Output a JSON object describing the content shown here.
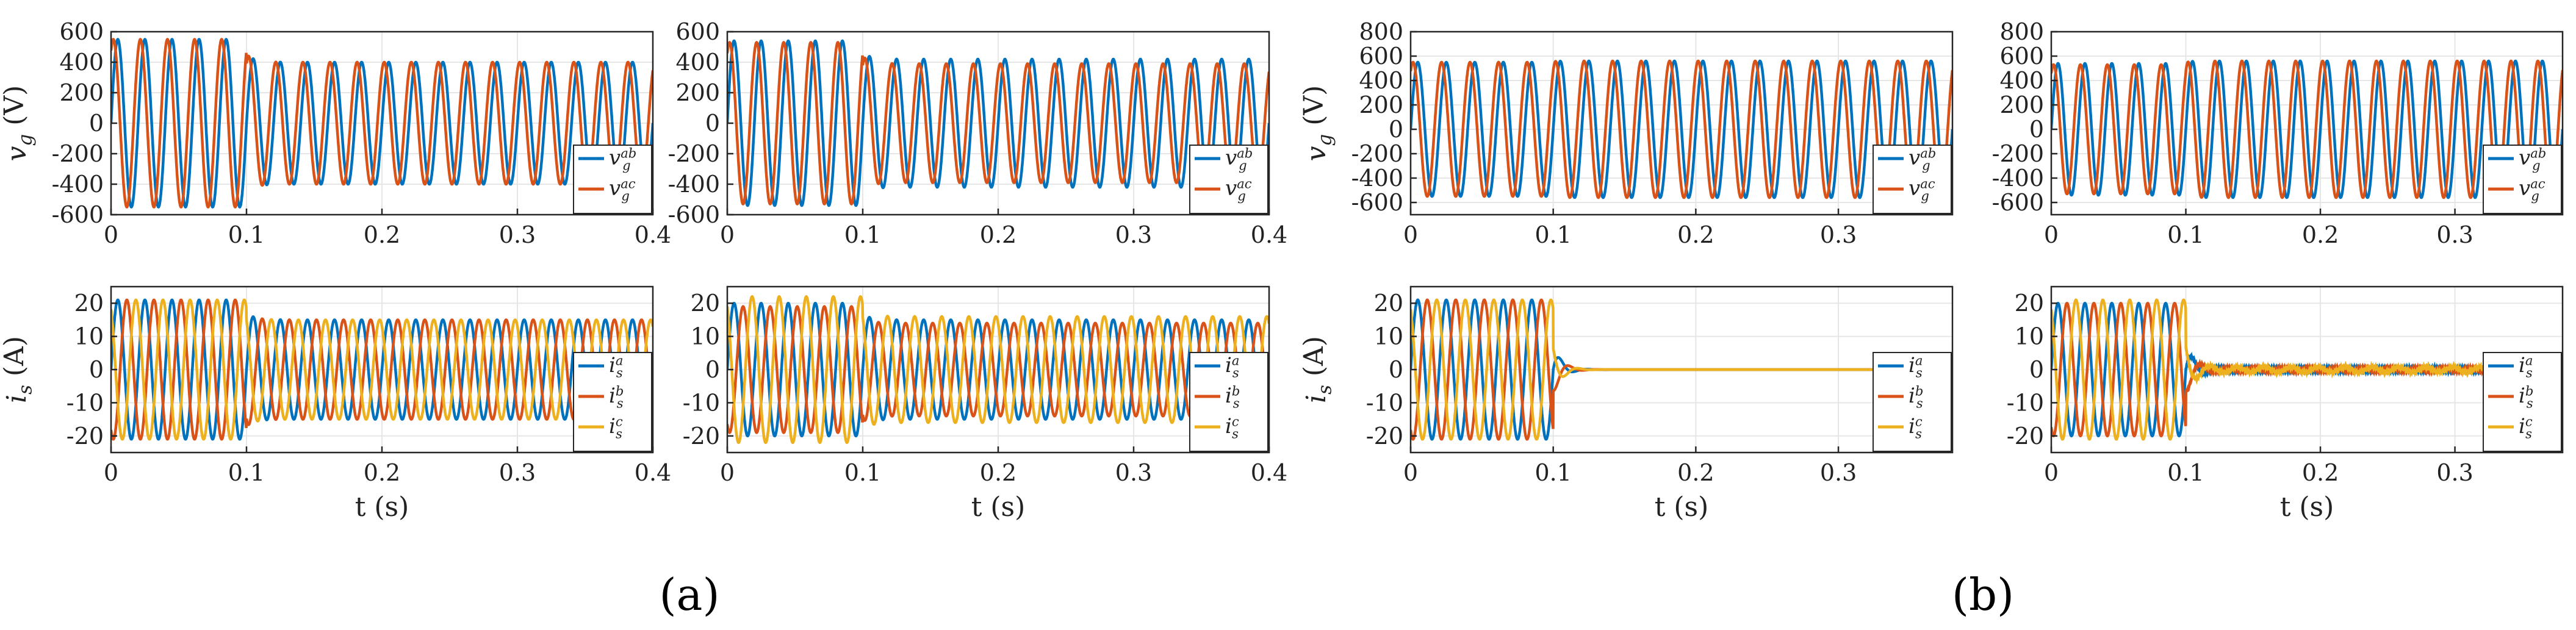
{
  "colors": {
    "blue": "#0072BD",
    "red": "#D95319",
    "yellow": "#EDB120",
    "grid": "#e6e6e6",
    "axis": "#262626"
  },
  "panel_labels": [
    "(a)",
    "(b)"
  ],
  "chart_data": [
    {
      "type": "line",
      "group": "a",
      "row": "voltage",
      "ylabel": "v_g (V)",
      "xlabel": "",
      "xlim": [
        0,
        0.4
      ],
      "ylim": [
        -600,
        600
      ],
      "xticks": [
        0,
        0.1,
        0.2,
        0.3,
        0.4
      ],
      "xtick_labels": [
        "0",
        "0.1",
        "0.2",
        "0.3",
        "0.4"
      ],
      "yticks": [
        -600,
        -400,
        -200,
        0,
        200,
        400,
        600
      ],
      "ytick_labels": [
        "-600",
        "-400",
        "-200",
        "0",
        "200",
        "400",
        "600"
      ],
      "grid": true,
      "legend": "right",
      "series": [
        {
          "name": "v_g^ab",
          "color_key": "blue",
          "freq": 50,
          "phase": 0,
          "amp_before": 550,
          "amp_after": 400,
          "t_switch": 0.1
        },
        {
          "name": "v_g^ac",
          "color_key": "red",
          "freq": 50,
          "phase": 1.0472,
          "amp_before": 550,
          "amp_after": 400,
          "t_switch": 0.1
        }
      ]
    },
    {
      "type": "line",
      "group": "a",
      "row": "voltage",
      "ylabel": "",
      "xlabel": "",
      "xlim": [
        0,
        0.4
      ],
      "ylim": [
        -600,
        600
      ],
      "xticks": [
        0,
        0.1,
        0.2,
        0.3,
        0.4
      ],
      "xtick_labels": [
        "0",
        "0.1",
        "0.2",
        "0.3",
        "0.4"
      ],
      "yticks": [
        -600,
        -400,
        -200,
        0,
        200,
        400,
        600
      ],
      "ytick_labels": [
        "-600",
        "-400",
        "-200",
        "0",
        "200",
        "400",
        "600"
      ],
      "grid": true,
      "legend": "right",
      "series": [
        {
          "name": "v_g^ab",
          "color_key": "blue",
          "freq": 50,
          "phase": 0,
          "amp_before": 540,
          "amp_after": 420,
          "t_switch": 0.1
        },
        {
          "name": "v_g^ac",
          "color_key": "red",
          "freq": 50,
          "phase": 1.0472,
          "amp_before": 530,
          "amp_after": 390,
          "t_switch": 0.1
        }
      ]
    },
    {
      "type": "line",
      "group": "b",
      "row": "voltage",
      "ylabel": "v_g (V)",
      "xlabel": "",
      "xlim": [
        0,
        0.38
      ],
      "ylim": [
        -700,
        800
      ],
      "xticks": [
        0,
        0.1,
        0.2,
        0.3
      ],
      "xtick_labels": [
        "0",
        "0.1",
        "0.2",
        "0.3"
      ],
      "yticks": [
        -600,
        -400,
        -200,
        0,
        200,
        400,
        600,
        800
      ],
      "ytick_labels": [
        "-600",
        "-400",
        "-200",
        "0",
        "200",
        "400",
        "600",
        "800"
      ],
      "grid": true,
      "legend": "right",
      "series": [
        {
          "name": "v_g^ab",
          "color_key": "blue",
          "freq": 50,
          "phase": 0,
          "amp_before": 550,
          "amp_after": 560,
          "t_switch": 0.1
        },
        {
          "name": "v_g^ac",
          "color_key": "red",
          "freq": 50,
          "phase": 1.0472,
          "amp_before": 550,
          "amp_after": 560,
          "t_switch": 0.1
        }
      ]
    },
    {
      "type": "line",
      "group": "b",
      "row": "voltage",
      "ylabel": "",
      "xlabel": "",
      "xlim": [
        0,
        0.38
      ],
      "ylim": [
        -700,
        800
      ],
      "xticks": [
        0,
        0.1,
        0.2,
        0.3
      ],
      "xtick_labels": [
        "0",
        "0.1",
        "0.2",
        "0.3"
      ],
      "yticks": [
        -600,
        -400,
        -200,
        0,
        200,
        400,
        600,
        800
      ],
      "ytick_labels": [
        "-600",
        "-400",
        "-200",
        "0",
        "200",
        "400",
        "600",
        "800"
      ],
      "grid": true,
      "legend": "right",
      "series": [
        {
          "name": "v_g^ab",
          "color_key": "blue",
          "freq": 50,
          "phase": 0,
          "amp_before": 540,
          "amp_after": 560,
          "t_switch": 0.1
        },
        {
          "name": "v_g^ac",
          "color_key": "red",
          "freq": 50,
          "phase": 1.0472,
          "amp_before": 530,
          "amp_after": 560,
          "t_switch": 0.1
        }
      ]
    },
    {
      "type": "line",
      "group": "a",
      "row": "current",
      "ylabel": "i_s (A)",
      "xlabel": "t (s)",
      "xlim": [
        0,
        0.4
      ],
      "ylim": [
        -25,
        25
      ],
      "xticks": [
        0,
        0.1,
        0.2,
        0.3,
        0.4
      ],
      "xtick_labels": [
        "0",
        "0.1",
        "0.2",
        "0.3",
        "0.4"
      ],
      "yticks": [
        -20,
        -10,
        0,
        10,
        20
      ],
      "ytick_labels": [
        "-20",
        "-10",
        "0",
        "10",
        "20"
      ],
      "grid": true,
      "legend": "right",
      "series": [
        {
          "name": "i_s^a",
          "color_key": "blue",
          "freq": 50,
          "phase": 0,
          "amp_before": 21,
          "amp_after": 15,
          "t_switch": 0.1
        },
        {
          "name": "i_s^b",
          "color_key": "red",
          "freq": 50,
          "phase": -2.0944,
          "amp_before": 21,
          "amp_after": 15,
          "t_switch": 0.1
        },
        {
          "name": "i_s^c",
          "color_key": "yellow",
          "freq": 50,
          "phase": 2.0944,
          "amp_before": 21,
          "amp_after": 15,
          "t_switch": 0.1
        }
      ]
    },
    {
      "type": "line",
      "group": "a",
      "row": "current",
      "ylabel": "",
      "xlabel": "t (s)",
      "xlim": [
        0,
        0.4
      ],
      "ylim": [
        -25,
        25
      ],
      "xticks": [
        0,
        0.1,
        0.2,
        0.3,
        0.4
      ],
      "xtick_labels": [
        "0",
        "0.1",
        "0.2",
        "0.3",
        "0.4"
      ],
      "yticks": [
        -20,
        -10,
        0,
        10,
        20
      ],
      "ytick_labels": [
        "-20",
        "-10",
        "0",
        "10",
        "20"
      ],
      "grid": true,
      "legend": "right",
      "series": [
        {
          "name": "i_s^a",
          "color_key": "blue",
          "freq": 50,
          "phase": 0,
          "amp_before": 20,
          "amp_after": 15,
          "t_switch": 0.1
        },
        {
          "name": "i_s^b",
          "color_key": "red",
          "freq": 50,
          "phase": -2.0944,
          "amp_before": 19,
          "amp_after": 14,
          "t_switch": 0.1
        },
        {
          "name": "i_s^c",
          "color_key": "yellow",
          "freq": 50,
          "phase": 2.0944,
          "amp_before": 22,
          "amp_after": 16,
          "t_switch": 0.1
        }
      ]
    },
    {
      "type": "line",
      "group": "b",
      "row": "current",
      "ylabel": "i_s (A)",
      "xlabel": "t (s)",
      "xlim": [
        0,
        0.38
      ],
      "ylim": [
        -25,
        25
      ],
      "xticks": [
        0,
        0.1,
        0.2,
        0.3
      ],
      "xtick_labels": [
        "0",
        "0.1",
        "0.2",
        "0.3"
      ],
      "yticks": [
        -20,
        -10,
        0,
        10,
        20
      ],
      "ytick_labels": [
        "-20",
        "-10",
        "0",
        "10",
        "20"
      ],
      "grid": true,
      "legend": "right",
      "series": [
        {
          "name": "i_s^a",
          "color_key": "blue",
          "freq": 50,
          "phase": 0,
          "amp_before": 21,
          "amp_after": 0,
          "t_switch": 0.1
        },
        {
          "name": "i_s^b",
          "color_key": "red",
          "freq": 50,
          "phase": -2.0944,
          "amp_before": 21,
          "amp_after": 0,
          "t_switch": 0.1
        },
        {
          "name": "i_s^c",
          "color_key": "yellow",
          "freq": 50,
          "phase": 2.0944,
          "amp_before": 21,
          "amp_after": 0,
          "t_switch": 0.1
        }
      ]
    },
    {
      "type": "line",
      "group": "b",
      "row": "current",
      "ylabel": "",
      "xlabel": "t (s)",
      "xlim": [
        0,
        0.38
      ],
      "ylim": [
        -25,
        25
      ],
      "xticks": [
        0,
        0.1,
        0.2,
        0.3
      ],
      "xtick_labels": [
        "0",
        "0.1",
        "0.2",
        "0.3"
      ],
      "yticks": [
        -20,
        -10,
        0,
        10,
        20
      ],
      "ytick_labels": [
        "-20",
        "-10",
        "0",
        "10",
        "20"
      ],
      "grid": true,
      "legend": "right",
      "series": [
        {
          "name": "i_s^a",
          "color_key": "blue",
          "freq": 50,
          "phase": 0,
          "amp_before": 20,
          "amp_after": 0.6,
          "t_switch": 0.1
        },
        {
          "name": "i_s^b",
          "color_key": "red",
          "freq": 50,
          "phase": -2.0944,
          "amp_before": 20,
          "amp_after": 0.6,
          "t_switch": 0.1
        },
        {
          "name": "i_s^c",
          "color_key": "yellow",
          "freq": 50,
          "phase": 2.0944,
          "amp_before": 21,
          "amp_after": 0.8,
          "t_switch": 0.1
        }
      ]
    }
  ]
}
